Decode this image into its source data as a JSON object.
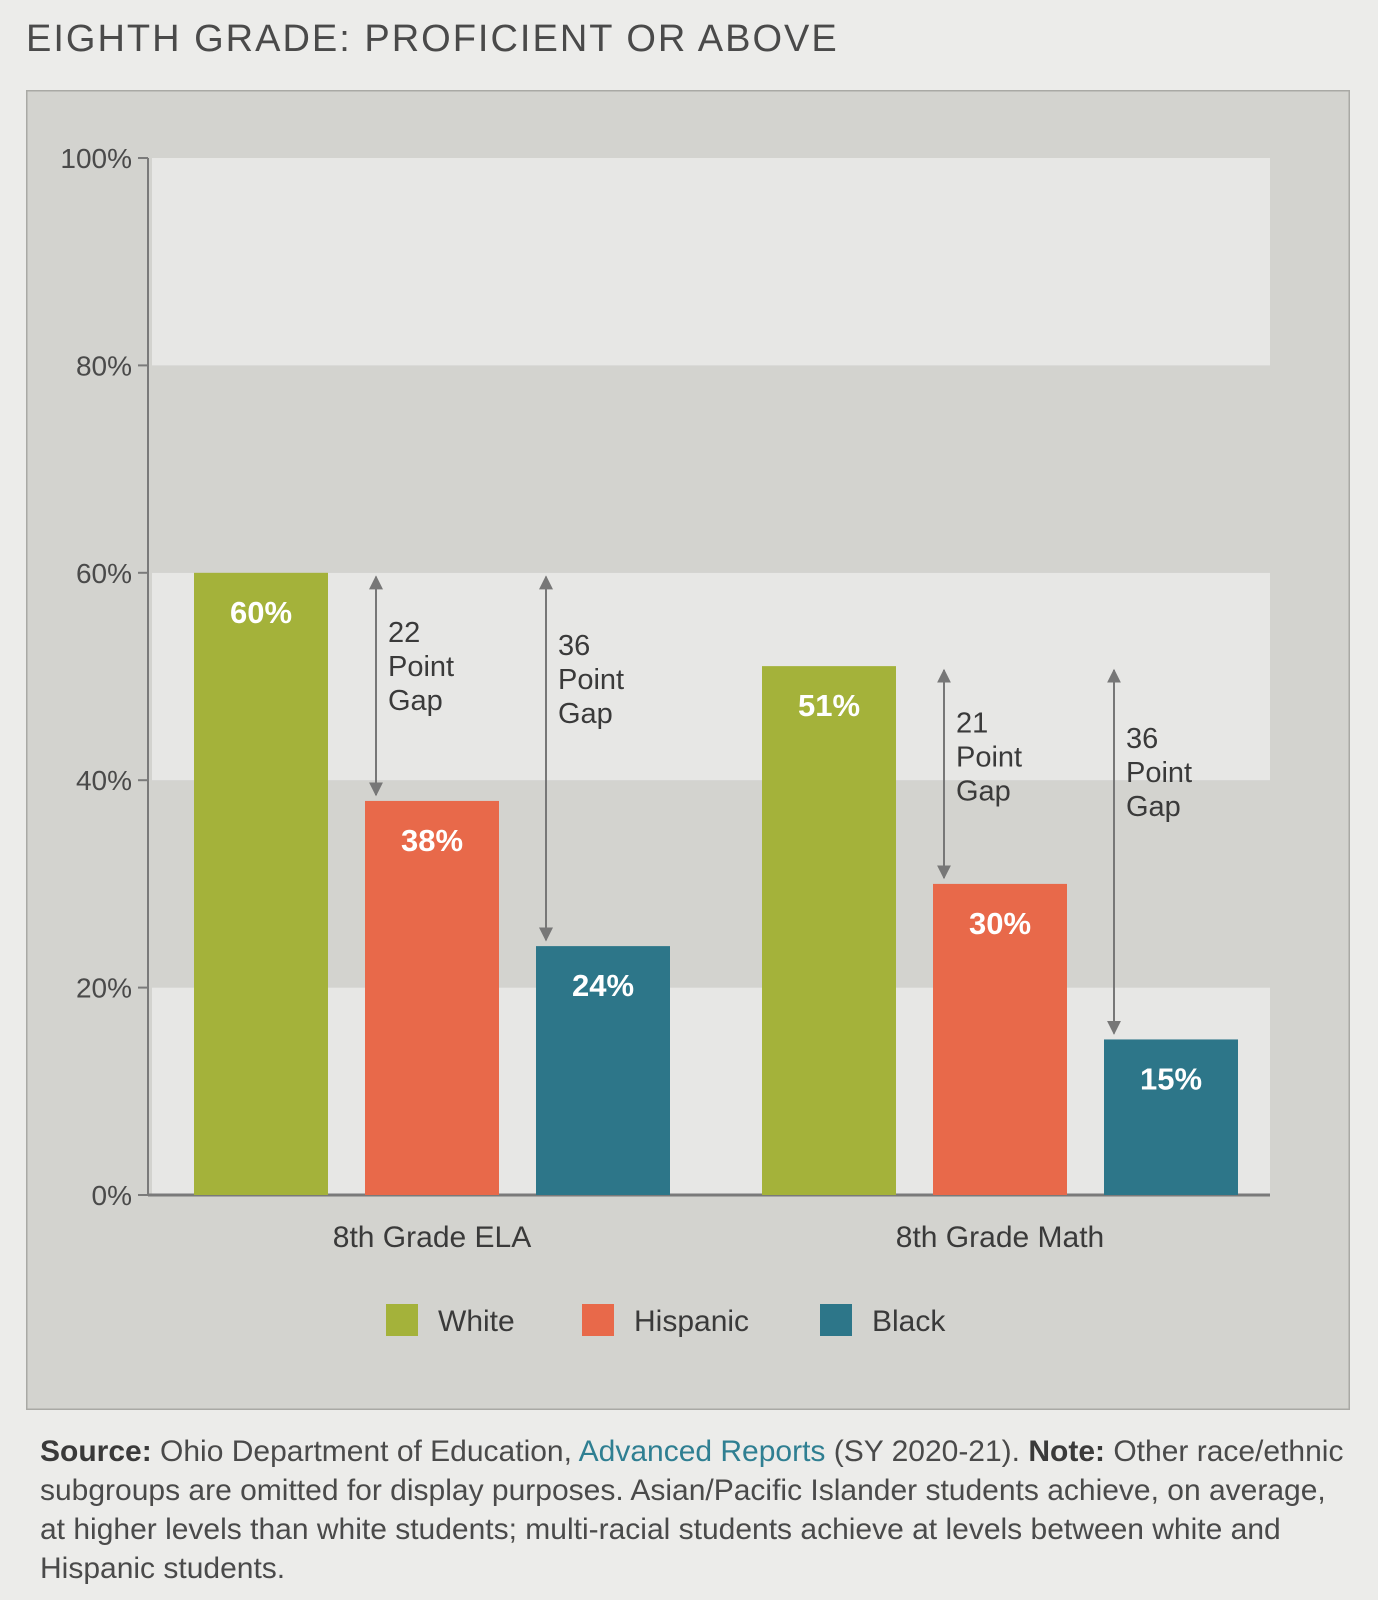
{
  "chart_data": {
    "type": "bar",
    "title": "EIGHTH GRADE: PROFICIENT OR ABOVE",
    "xlabel": "",
    "ylabel": "",
    "categories": [
      "8th Grade ELA",
      "8th Grade Math"
    ],
    "series": [
      {
        "name": "White",
        "values": [
          60,
          51
        ],
        "labels": [
          "60%",
          "51%"
        ],
        "color": "#a4b23a"
      },
      {
        "name": "Hispanic",
        "values": [
          38,
          30
        ],
        "labels": [
          "38%",
          "30%"
        ],
        "color": "#e8694a"
      },
      {
        "name": "Black",
        "values": [
          24,
          15
        ],
        "labels": [
          "24%",
          "15%"
        ],
        "color": "#2d7689"
      }
    ],
    "ylim": [
      0,
      100
    ],
    "yticks": [
      0,
      20,
      40,
      60,
      80,
      100
    ],
    "ytick_labels": [
      "0%",
      "20%",
      "40%",
      "60%",
      "80%",
      "100%"
    ],
    "legend_position": "bottom",
    "grid": "alternating bands",
    "annotations": [
      {
        "category": 0,
        "from_series": 0,
        "to_series": 1,
        "lines": [
          "22",
          "Point",
          "Gap"
        ]
      },
      {
        "category": 0,
        "from_series": 0,
        "to_series": 2,
        "lines": [
          "36",
          "Point",
          "Gap"
        ]
      },
      {
        "category": 1,
        "from_series": 0,
        "to_series": 1,
        "lines": [
          "21",
          "Point",
          "Gap"
        ]
      },
      {
        "category": 1,
        "from_series": 0,
        "to_series": 2,
        "lines": [
          "36",
          "Point",
          "Gap"
        ]
      }
    ]
  },
  "note": {
    "source_label": "Source:",
    "source_text": " Ohio Department of Education, ",
    "source_link": "Advanced Reports",
    "source_suffix": " (SY 2020-21). ",
    "note_label": "Note:",
    "note_text": " Other race/ethnic subgroups are omitted for display purposes. Asian/Pacific Islander students achieve, on average, at higher levels than white students; multi-racial students achieve at levels between white and Hispanic students."
  }
}
